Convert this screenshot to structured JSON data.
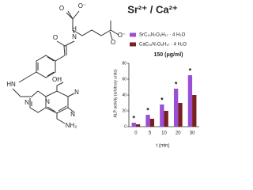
{
  "structure": {
    "atoms": [
      "O",
      "O⁻",
      "H",
      "N",
      "O",
      "O⁻",
      "O",
      "HN",
      "OH",
      "N",
      "N",
      "N",
      "N",
      "NH₂"
    ]
  },
  "chart_data": {
    "type": "bar",
    "title": "Sr²⁺ / Ca²⁺",
    "subtitle": "150 (μg/ml)",
    "categories": [
      "0",
      "5",
      "10",
      "20",
      "30"
    ],
    "series": [
      {
        "name": "SrC₁₉N₇O₆H₁₇ · 4 H₂O",
        "color": "#9b4fd6",
        "values": [
          5,
          15,
          28,
          48,
          65
        ]
      },
      {
        "name": "CaC₁₉N₇O₆H₁₇ · 4 H₂O",
        "color": "#7a1f22",
        "values": [
          3,
          10,
          20,
          30,
          40
        ]
      }
    ],
    "annotations": [
      "*",
      "*",
      "*",
      "*",
      "*"
    ],
    "x_label": "t (min)",
    "y_label": "ALP activity (arbitrary units)",
    "ylim": [
      0,
      80
    ],
    "yticks": [
      0,
      20,
      40,
      60,
      80
    ],
    "legend": "top-left"
  }
}
